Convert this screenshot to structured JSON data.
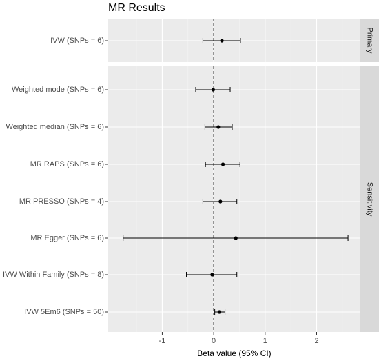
{
  "chart_data": {
    "type": "forest",
    "title": "MR Results",
    "xlabel": "Beta value (95% CI)",
    "xlim": [
      -2.05,
      2.85
    ],
    "xticks": [
      -1,
      0,
      1,
      2
    ],
    "xtick_labels": [
      "-1",
      "0",
      "1",
      "2"
    ],
    "reference_line": 0,
    "panels": [
      {
        "name": "Primary",
        "rows": [
          {
            "label": "IVW (SNPs = 6)",
            "estimate": 0.16,
            "lower": -0.21,
            "upper": 0.52
          }
        ]
      },
      {
        "name": "Sensitivity",
        "rows": [
          {
            "label": "Weighted mode (SNPs = 6)",
            "estimate": -0.01,
            "lower": -0.35,
            "upper": 0.32
          },
          {
            "label": "Weighted median (SNPs = 6)",
            "estimate": 0.09,
            "lower": -0.17,
            "upper": 0.36
          },
          {
            "label": "MR RAPS (SNPs = 6)",
            "estimate": 0.18,
            "lower": -0.16,
            "upper": 0.51
          },
          {
            "label": "MR PRESSO (SNPs = 4)",
            "estimate": 0.13,
            "lower": -0.21,
            "upper": 0.45
          },
          {
            "label": "MR Egger (SNPs = 6)",
            "estimate": 0.43,
            "lower": -1.76,
            "upper": 2.61
          },
          {
            "label": "IVW Within Family (SNPs = 8)",
            "estimate": -0.03,
            "lower": -0.53,
            "upper": 0.45
          },
          {
            "label": "IVW 5Em6 (SNPs = 50)",
            "estimate": 0.11,
            "lower": 0.02,
            "upper": 0.22
          }
        ]
      }
    ]
  }
}
